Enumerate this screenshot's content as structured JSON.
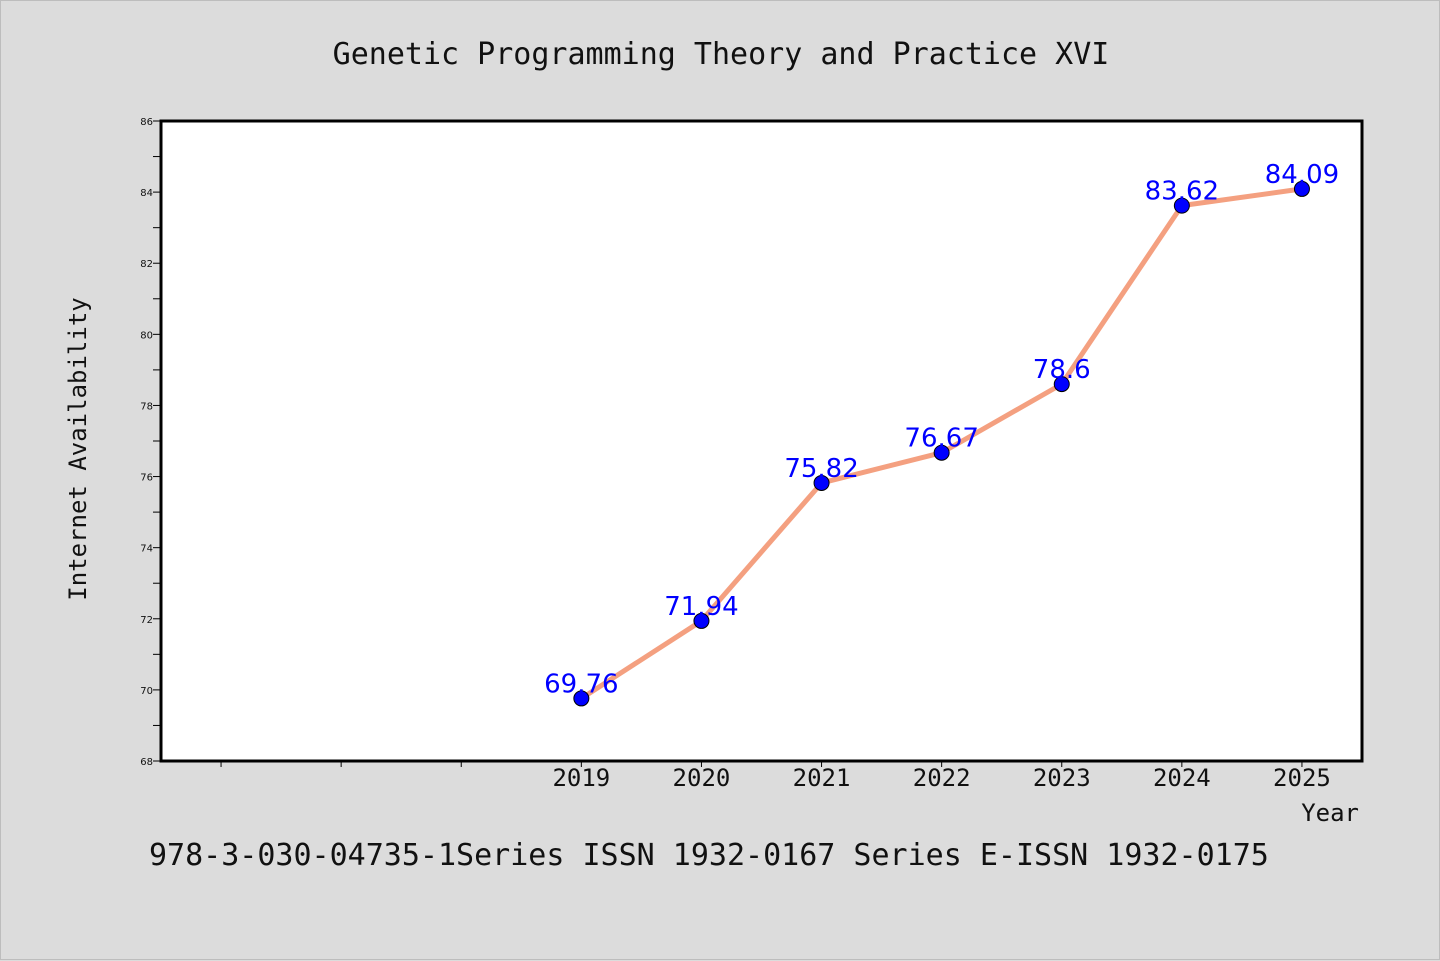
{
  "page": {
    "title": "Genetic Programming Theory and Practice XVI",
    "footer": "978-3-030-04735-1Series ISSN 1932-0167 Series E-ISSN 1932-0175"
  },
  "colors": {
    "background": "#dcdcdc",
    "plot_background": "#ffffff",
    "line": "#f4a080",
    "marker": "#0000ff",
    "data_label": "#0000ff"
  },
  "chart_data": {
    "type": "line",
    "title": "Genetic Programming Theory and Practice XVI",
    "xlabel": "Year",
    "ylabel": "Internet Availability",
    "categories": [
      "2019",
      "2020",
      "2021",
      "2022",
      "2023",
      "2024",
      "2025"
    ],
    "series": [
      {
        "values": [
          69.76,
          71.94,
          75.82,
          76.67,
          78.6,
          83.62,
          84.09
        ],
        "labels": [
          "69.76",
          "71.94",
          "75.82",
          "76.67",
          "78.6",
          "83.62",
          "84.09"
        ]
      }
    ],
    "ylim": [
      68,
      86
    ],
    "yticks": [
      "68",
      "70",
      "72",
      "74",
      "76",
      "78",
      "80",
      "82",
      "84",
      "86"
    ],
    "grid": false,
    "legend": "none"
  }
}
